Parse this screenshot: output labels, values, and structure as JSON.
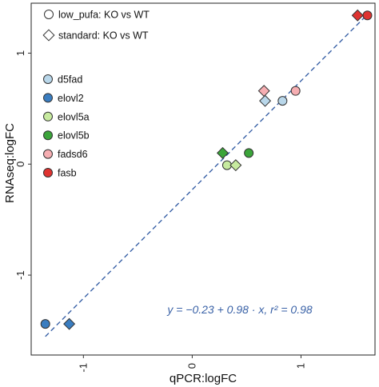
{
  "chart_data": {
    "type": "scatter",
    "title": "",
    "xlabel": "qPCR:logFC",
    "ylabel": "RNAseq:logFC",
    "xlim": [
      -1.48,
      1.68
    ],
    "ylim": [
      -1.72,
      1.45
    ],
    "x_ticks": [
      -1,
      0,
      1
    ],
    "y_ticks": [
      -1,
      0,
      1
    ],
    "x_tick_labels": [
      "-1",
      "0",
      "1"
    ],
    "y_tick_labels": [
      "-1",
      "0",
      "1"
    ],
    "grid": false,
    "fit_line": {
      "intercept": -0.23,
      "slope": 0.98,
      "x_range": [
        -1.35,
        1.62
      ],
      "color": "#3a62a7",
      "style": "dashed"
    },
    "annotation": "y = −0.23 + 0.98 · x,  r² = 0.98",
    "shape_legend": [
      {
        "label": "low_pufa: KO vs WT",
        "shape": "circle"
      },
      {
        "label": "standard: KO vs WT",
        "shape": "diamond"
      }
    ],
    "color_legend": [
      {
        "label": "d5fad",
        "color": "#b9d7ea"
      },
      {
        "label": "elovl2",
        "color": "#3a7dc0"
      },
      {
        "label": "elovl5a",
        "color": "#c7ea9f"
      },
      {
        "label": "elovl5b",
        "color": "#3ba43a"
      },
      {
        "label": "fadsd6",
        "color": "#f6aeb2"
      },
      {
        "label": "fasb",
        "color": "#df3330"
      }
    ],
    "legend_placement": "top-left",
    "points": [
      {
        "gene": "d5fad",
        "condition": "low_pufa",
        "x": 0.83,
        "y": 0.57
      },
      {
        "gene": "d5fad",
        "condition": "standard",
        "x": 0.67,
        "y": 0.57
      },
      {
        "gene": "elovl2",
        "condition": "low_pufa",
        "x": -1.35,
        "y": -1.44
      },
      {
        "gene": "elovl2",
        "condition": "standard",
        "x": -1.13,
        "y": -1.44
      },
      {
        "gene": "elovl5a",
        "condition": "low_pufa",
        "x": 0.32,
        "y": -0.01
      },
      {
        "gene": "elovl5a",
        "condition": "standard",
        "x": 0.4,
        "y": -0.01
      },
      {
        "gene": "elovl5b",
        "condition": "low_pufa",
        "x": 0.52,
        "y": 0.1
      },
      {
        "gene": "elovl5b",
        "condition": "standard",
        "x": 0.28,
        "y": 0.1
      },
      {
        "gene": "fadsd6",
        "condition": "low_pufa",
        "x": 0.95,
        "y": 0.66
      },
      {
        "gene": "fadsd6",
        "condition": "standard",
        "x": 0.66,
        "y": 0.66
      },
      {
        "gene": "fasb",
        "condition": "low_pufa",
        "x": 1.61,
        "y": 1.34
      },
      {
        "gene": "fasb",
        "condition": "standard",
        "x": 1.52,
        "y": 1.34
      }
    ]
  }
}
